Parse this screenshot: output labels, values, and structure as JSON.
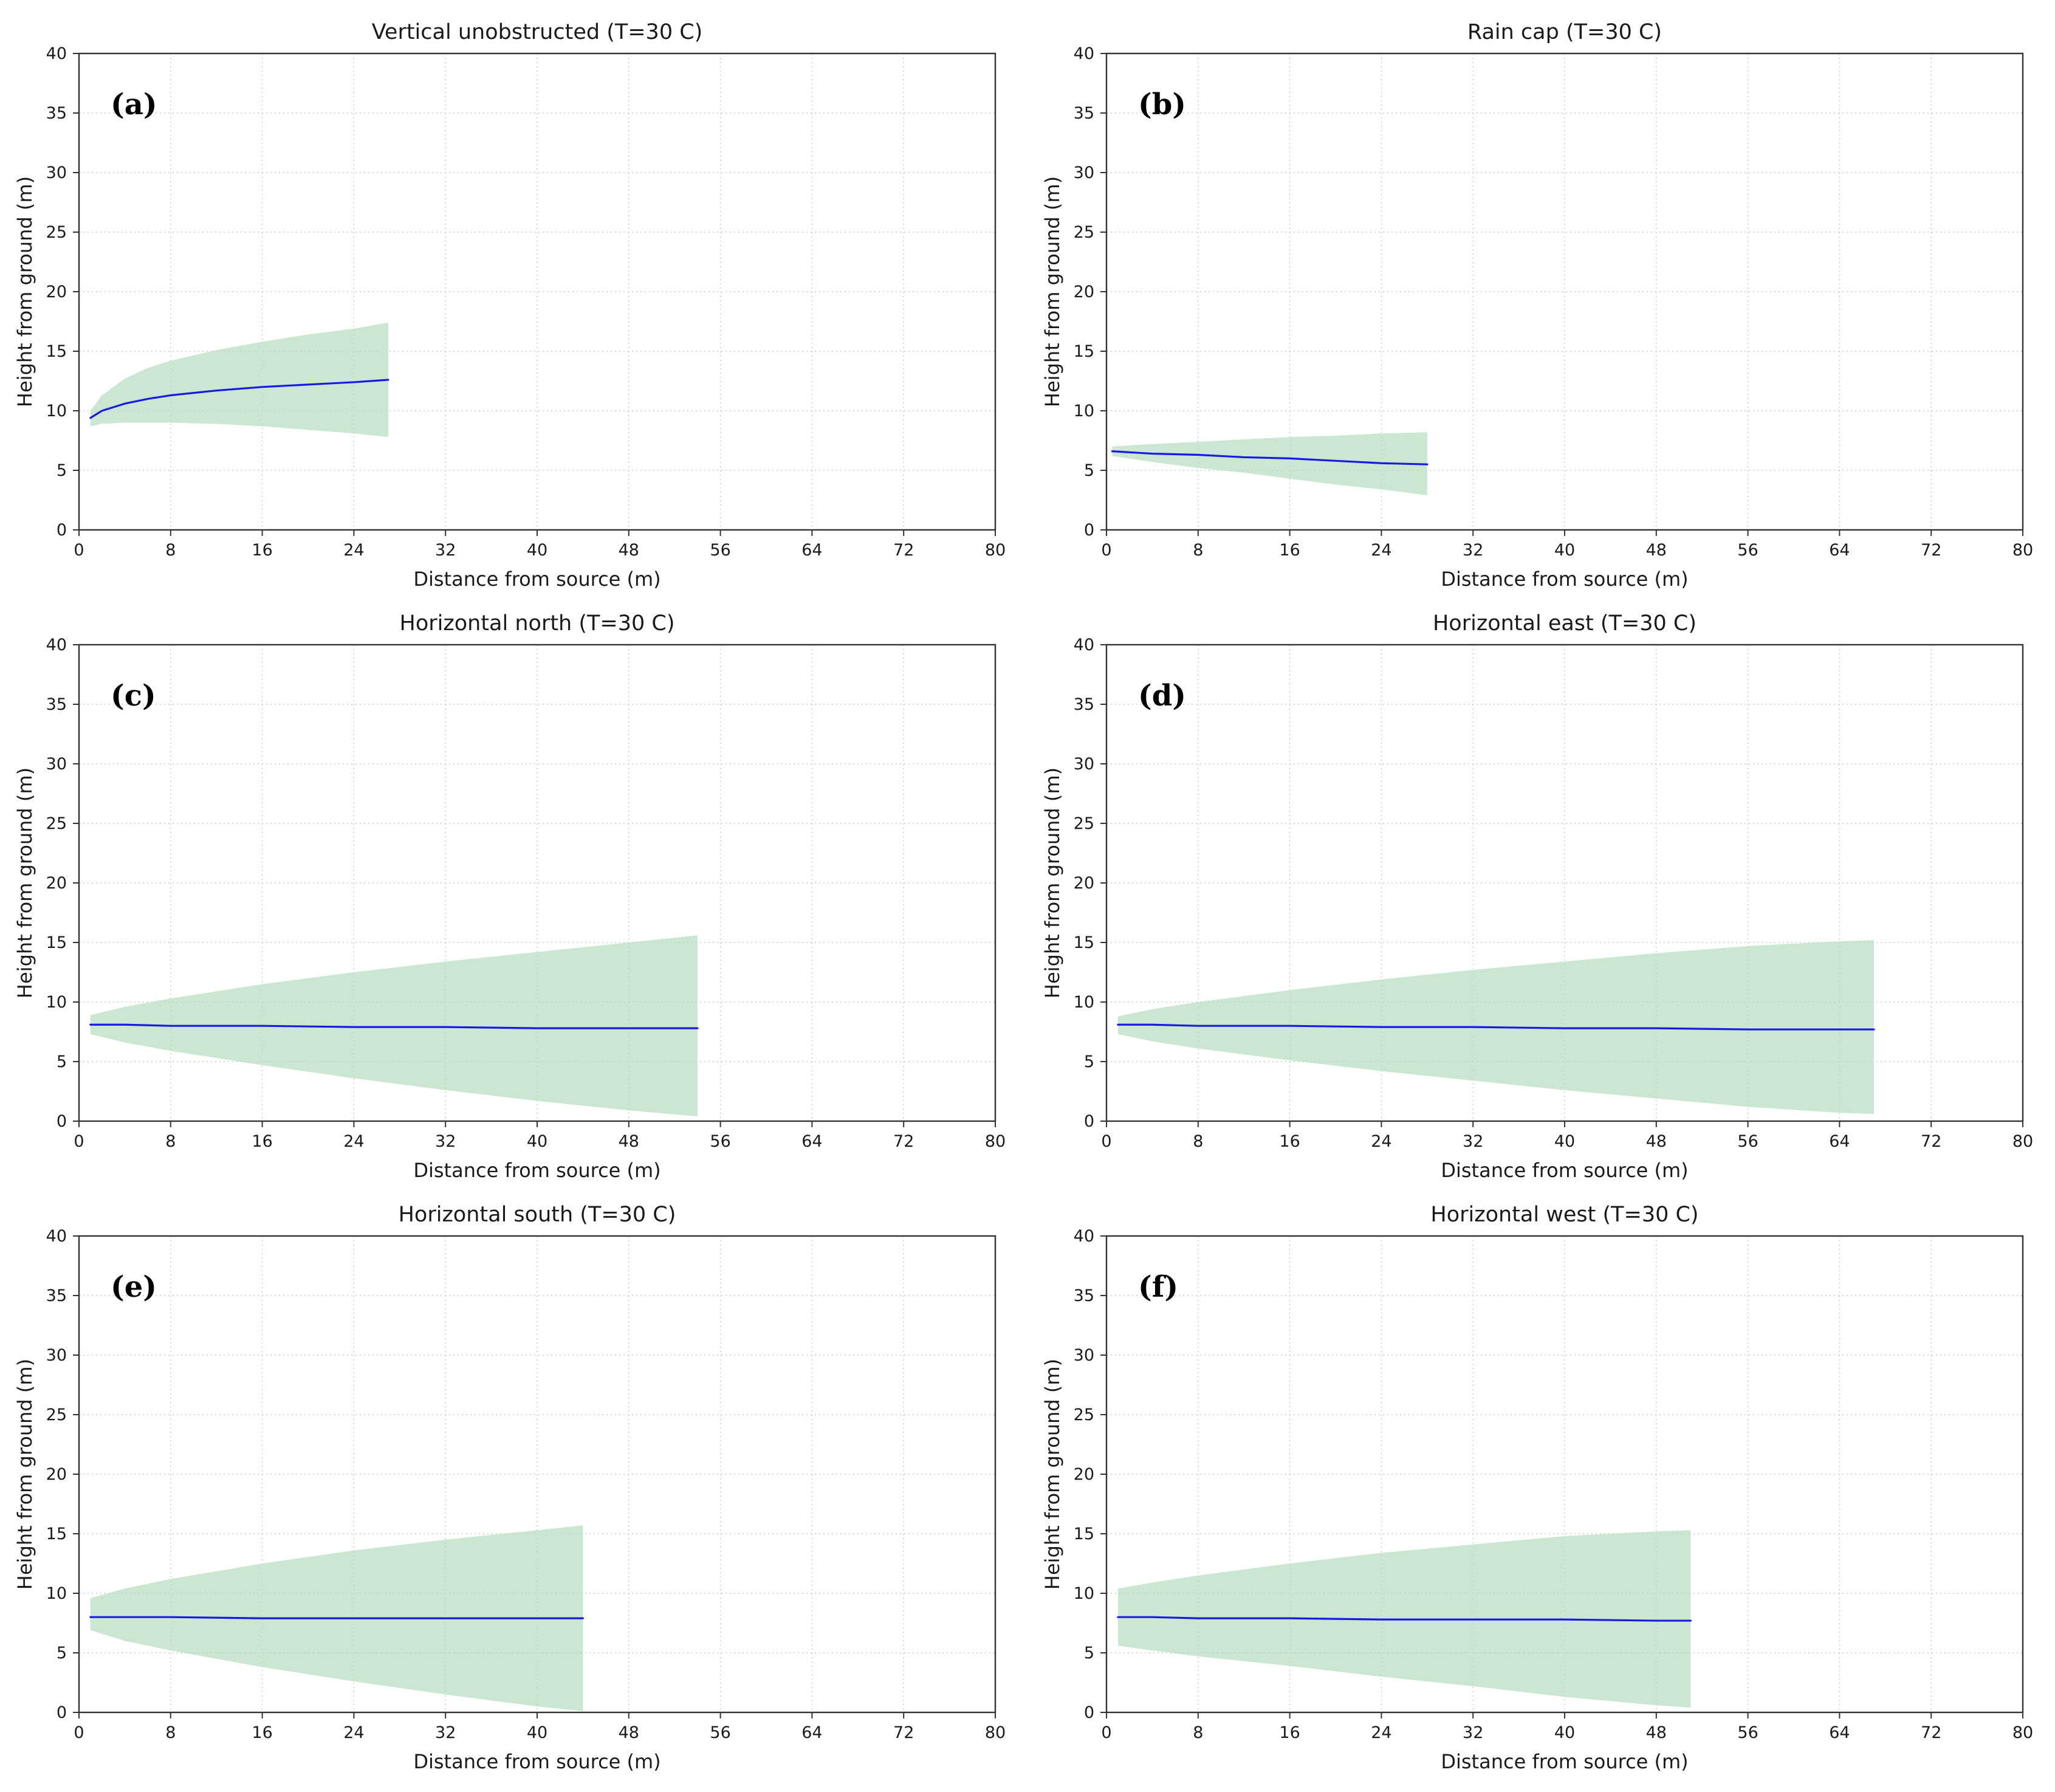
{
  "figure": {
    "background": "#ffffff",
    "description": "Six-panel plume trajectory figure, 2 columns x 3 rows"
  },
  "chart_data": {
    "type": "line",
    "layout": "grid-2x3",
    "grid": true,
    "legend_position": "none",
    "colors": {
      "centerline": "#1a1ae6",
      "band_fill": "#b9dfc1",
      "band_opacity": 0.75,
      "axis": "#333333",
      "gridline": "#c9c9c9",
      "text": "#1a1a1a"
    },
    "axes_common": {
      "xlabel": "Distance from source (m)",
      "ylabel": "Height from ground (m)",
      "xlim": [
        0,
        80
      ],
      "ylim": [
        0,
        40
      ],
      "xticks": [
        0,
        8,
        16,
        24,
        32,
        40,
        48,
        56,
        64,
        72,
        80
      ],
      "yticks": [
        0,
        5,
        10,
        15,
        20,
        25,
        30,
        35,
        40
      ]
    },
    "panels": [
      {
        "panel_label": "(a)",
        "title": "Vertical unobstructed (T=30 C)",
        "x": [
          1,
          2,
          4,
          6,
          8,
          12,
          16,
          20,
          24,
          27
        ],
        "center": [
          9.4,
          10.0,
          10.6,
          11.0,
          11.3,
          11.7,
          12.0,
          12.2,
          12.4,
          12.6
        ],
        "upper": [
          10.0,
          11.3,
          12.7,
          13.6,
          14.2,
          15.1,
          15.8,
          16.4,
          16.9,
          17.4
        ],
        "lower": [
          8.7,
          8.9,
          9.0,
          9.0,
          9.0,
          8.9,
          8.7,
          8.4,
          8.1,
          7.8
        ]
      },
      {
        "panel_label": "(b)",
        "title": "Rain cap (T=30 C)",
        "x": [
          0.5,
          4,
          8,
          12,
          16,
          20,
          24,
          28
        ],
        "center": [
          6.6,
          6.4,
          6.3,
          6.1,
          6.0,
          5.8,
          5.6,
          5.5
        ],
        "upper": [
          7.0,
          7.2,
          7.4,
          7.6,
          7.8,
          7.9,
          8.1,
          8.2
        ],
        "lower": [
          6.2,
          5.7,
          5.2,
          4.8,
          4.3,
          3.8,
          3.4,
          2.9
        ]
      },
      {
        "panel_label": "(c)",
        "title": "Horizontal north (T=30 C)",
        "x": [
          1,
          4,
          8,
          16,
          24,
          32,
          40,
          48,
          54
        ],
        "center": [
          8.1,
          8.1,
          8.0,
          8.0,
          7.9,
          7.9,
          7.8,
          7.8,
          7.8
        ],
        "upper": [
          8.9,
          9.6,
          10.3,
          11.5,
          12.5,
          13.4,
          14.2,
          15.0,
          15.6
        ],
        "lower": [
          7.3,
          6.6,
          5.9,
          4.7,
          3.6,
          2.6,
          1.7,
          0.9,
          0.4
        ]
      },
      {
        "panel_label": "(d)",
        "title": "Horizontal east (T=30 C)",
        "x": [
          1,
          4,
          8,
          16,
          24,
          32,
          40,
          48,
          56,
          64,
          67
        ],
        "center": [
          8.1,
          8.1,
          8.0,
          8.0,
          7.9,
          7.9,
          7.8,
          7.8,
          7.7,
          7.7,
          7.7
        ],
        "upper": [
          8.8,
          9.4,
          10.0,
          11.0,
          11.9,
          12.7,
          13.4,
          14.1,
          14.7,
          15.1,
          15.2
        ],
        "lower": [
          7.3,
          6.7,
          6.1,
          5.1,
          4.2,
          3.4,
          2.6,
          1.9,
          1.2,
          0.7,
          0.6
        ]
      },
      {
        "panel_label": "(e)",
        "title": "Horizontal south (T=30 C)",
        "x": [
          1,
          4,
          8,
          16,
          24,
          32,
          40,
          44
        ],
        "center": [
          8.0,
          8.0,
          8.0,
          7.9,
          7.9,
          7.9,
          7.9,
          7.9
        ],
        "upper": [
          9.6,
          10.4,
          11.2,
          12.5,
          13.6,
          14.5,
          15.3,
          15.7
        ],
        "lower": [
          6.9,
          6.0,
          5.2,
          3.8,
          2.6,
          1.5,
          0.5,
          0.1
        ]
      },
      {
        "panel_label": "(f)",
        "title": "Horizontal west (T=30 C)",
        "x": [
          1,
          4,
          8,
          16,
          24,
          32,
          40,
          48,
          51
        ],
        "center": [
          8.0,
          8.0,
          7.9,
          7.9,
          7.8,
          7.8,
          7.8,
          7.7,
          7.7
        ],
        "upper": [
          10.4,
          10.9,
          11.5,
          12.5,
          13.4,
          14.1,
          14.8,
          15.2,
          15.3
        ],
        "lower": [
          5.6,
          5.2,
          4.7,
          3.9,
          3.0,
          2.2,
          1.3,
          0.6,
          0.4
        ]
      }
    ]
  }
}
